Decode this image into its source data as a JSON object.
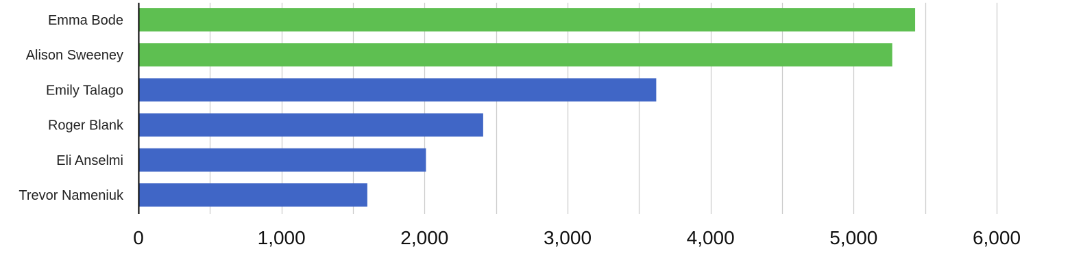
{
  "chart_data": {
    "type": "bar",
    "orientation": "horizontal",
    "categories": [
      "Emma Bode",
      "Alison Sweeney",
      "Emily Talago",
      "Roger Blank",
      "Eli Anselmi",
      "Trevor Nameniuk"
    ],
    "values": [
      5430,
      5270,
      3620,
      2410,
      2010,
      1600
    ],
    "bar_colors": [
      "#5ebf51",
      "#5ebf51",
      "#4066c6",
      "#4066c6",
      "#4066c6",
      "#4066c6"
    ],
    "xlim": [
      0,
      6000
    ],
    "xticks": [
      0,
      1000,
      2000,
      3000,
      4000,
      5000,
      6000
    ],
    "xtick_labels": [
      "0",
      "1,000",
      "2,000",
      "3,000",
      "4,000",
      "5,000",
      "6,000"
    ],
    "minor_gridlines_every": 500,
    "grid": true,
    "title": "",
    "xlabel": "",
    "ylabel": ""
  },
  "colors": {
    "grid": "#cccccc",
    "axis": "#000000",
    "highlight": "#5ebf51",
    "primary": "#4066c6"
  }
}
